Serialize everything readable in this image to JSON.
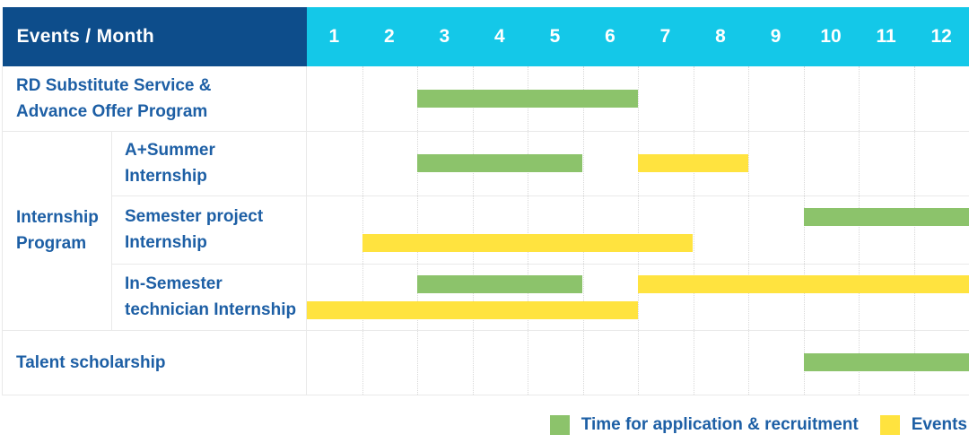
{
  "colors": {
    "header_bg": "#0d4d8b",
    "month_bg": "#14c8e8",
    "label_text": "#1d5fa5",
    "grid_line": "#e9e9e9",
    "grid_dotted": "#d8d8d8"
  },
  "chart_data": {
    "type": "bar",
    "subtype": "gantt-schedule",
    "title": "Events / Month",
    "x_ticks": [
      "1",
      "2",
      "3",
      "4",
      "5",
      "6",
      "7",
      "8",
      "9",
      "10",
      "11",
      "12"
    ],
    "x_range": [
      1,
      12
    ],
    "grid": "on",
    "legend_position": "bottom-right",
    "legend": [
      {
        "key": "application",
        "label": "Time for application & recruitment",
        "color": "#8cc36b"
      },
      {
        "key": "events",
        "label": "Events",
        "color": "#ffe33f"
      }
    ],
    "rows": [
      {
        "label": "RD Substitute Service &\nAdvance Offer Program",
        "group": "",
        "lanes": [
          [
            {
              "series": "application",
              "start_month": 3,
              "end_month": 6
            }
          ]
        ]
      },
      {
        "label": "A+Summer\nInternship",
        "group": "Internship\nProgram",
        "lanes": [
          [
            {
              "series": "application",
              "start_month": 3,
              "end_month": 5
            },
            {
              "series": "events",
              "start_month": 7,
              "end_month": 8
            }
          ]
        ]
      },
      {
        "label": "Semester project\nInternship",
        "group": "Internship\nProgram",
        "lanes": [
          [
            {
              "series": "application",
              "start_month": 10,
              "end_month": 12
            }
          ],
          [
            {
              "series": "events",
              "start_month": 2,
              "end_month": 7
            }
          ]
        ]
      },
      {
        "label": "In-Semester\ntechnician Internship",
        "group": "Internship\nProgram",
        "lanes": [
          [
            {
              "series": "application",
              "start_month": 3,
              "end_month": 5
            },
            {
              "series": "events",
              "start_month": 7,
              "end_month": 12
            }
          ],
          [
            {
              "series": "events",
              "start_month": 1,
              "end_month": 6
            }
          ]
        ]
      },
      {
        "label": "Talent scholarship",
        "group": "",
        "lanes": [
          [
            {
              "series": "application",
              "start_month": 10,
              "end_month": 12
            }
          ]
        ]
      }
    ]
  }
}
